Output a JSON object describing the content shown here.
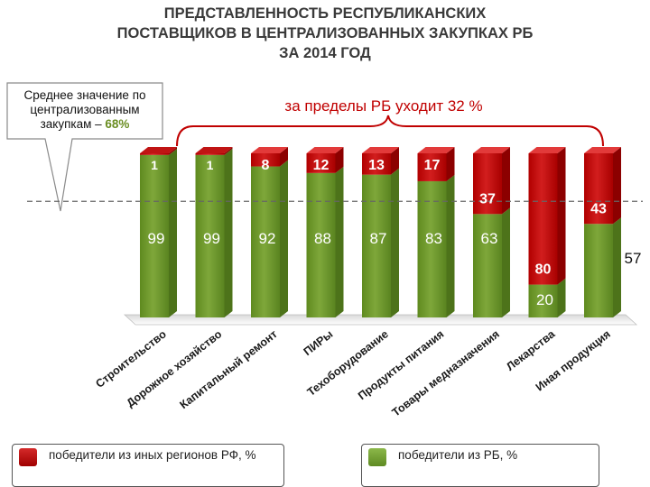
{
  "title_line1": "ПРЕДСТАВЛЕННОСТЬ РЕСПУБЛИКАНСКИХ",
  "title_line2": "ПОСТАВЩИКОВ В ЦЕНТРАЛИЗОВАННЫХ ЗАКУПКАХ РБ",
  "title_line3": "ЗА 2014 ГОД",
  "callout": {
    "text": "Среднее значение по централизованным закупкам –",
    "value": "68%"
  },
  "outside_label": "за пределы РБ уходит 32 %",
  "legend": {
    "external": "победители  из иных регионов РФ, %",
    "rb": "победители  из РБ, %"
  },
  "colors": {
    "external": "#c00000",
    "rb": "#6b8e23",
    "title": "#3a3a3a"
  },
  "chart_data": {
    "type": "bar",
    "stacked": true,
    "categories": [
      "Строительство",
      "Дорожное хозяйство",
      "Капитальный ремонт",
      "ПИРы",
      "Техоборудование",
      "Продукты питания",
      "Товары медназначения",
      "Лекарства",
      "Иная продукция"
    ],
    "series": [
      {
        "name": "победители из РБ, %",
        "values": [
          99,
          99,
          92,
          88,
          87,
          83,
          63,
          20,
          57
        ]
      },
      {
        "name": "победители из иных регионов РФ, %",
        "values": [
          1,
          1,
          8,
          12,
          13,
          17,
          37,
          80,
          43
        ]
      }
    ],
    "reference_line": {
      "value": 68,
      "label": "Среднее значение по централизованным закупкам – 68%"
    },
    "ylim": [
      0,
      100
    ]
  }
}
